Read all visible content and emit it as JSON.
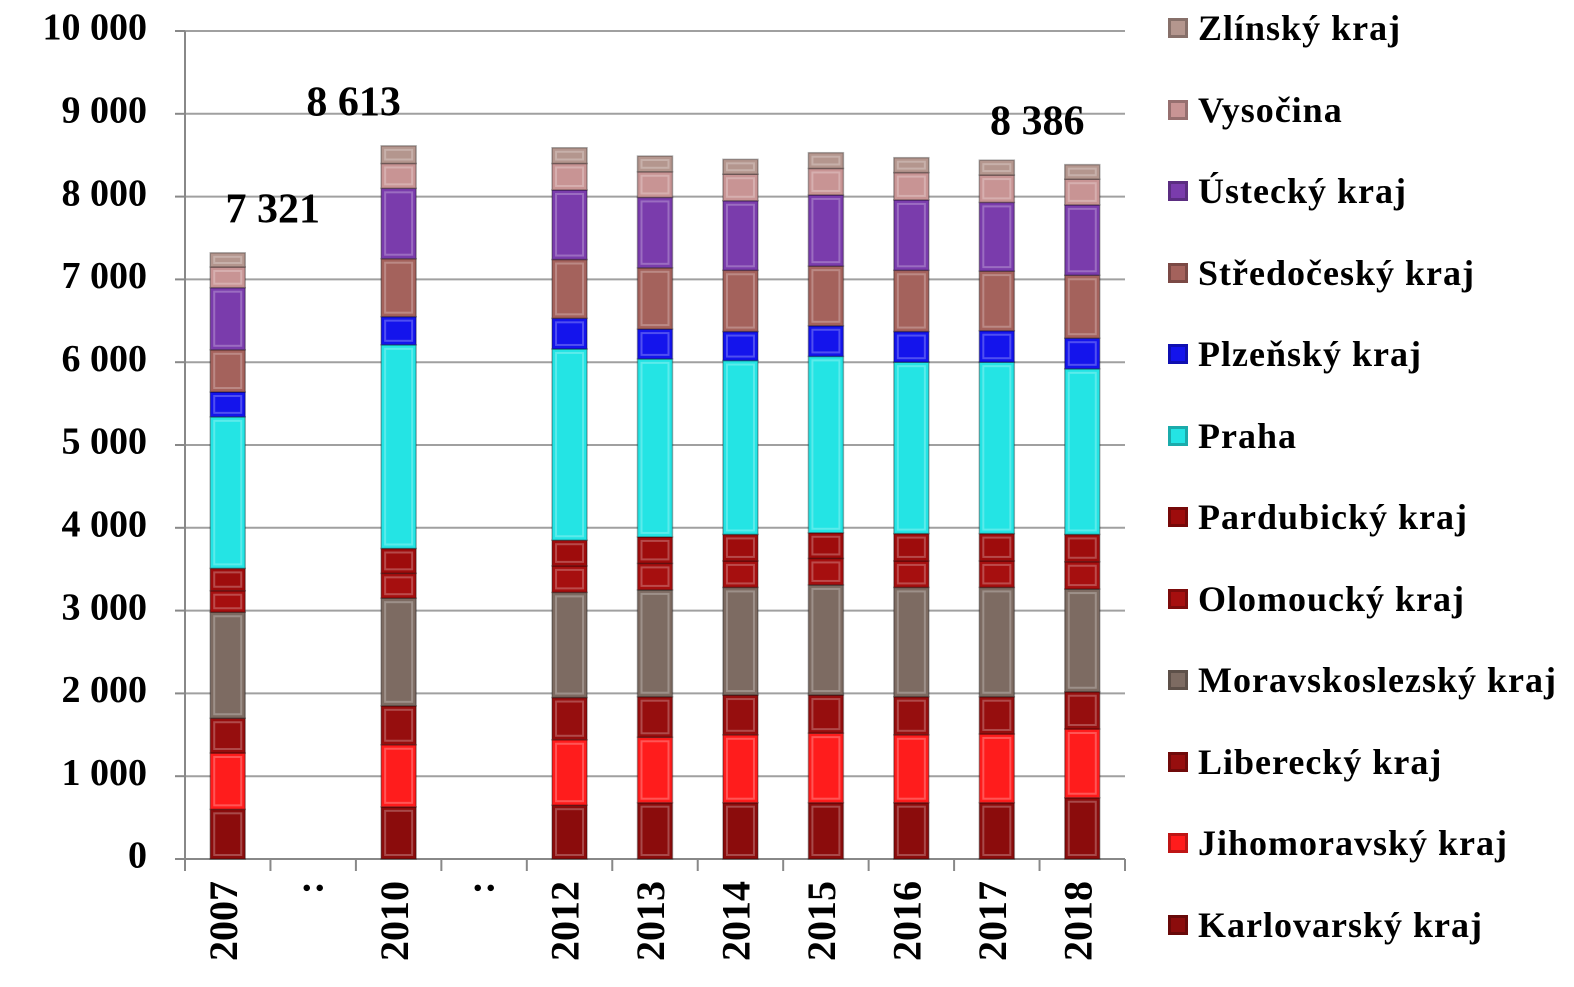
{
  "chart_data": {
    "type": "stacked-bar",
    "categories": [
      "2007",
      ":",
      "2010",
      ":",
      "2012",
      "2013",
      "2014",
      "2015",
      "2016",
      "2017",
      "2018"
    ],
    "series": [
      {
        "name": "Karlovarský kraj",
        "color": "#8b0c0c",
        "values": [
          600,
          null,
          630,
          null,
          650,
          680,
          680,
          680,
          680,
          680,
          740
        ]
      },
      {
        "name": "Jihomoravský kraj",
        "color": "#ff1c1c",
        "values": [
          680,
          null,
          750,
          null,
          790,
          790,
          820,
          840,
          820,
          830,
          830
        ]
      },
      {
        "name": "Liberecký kraj",
        "color": "#960e0e",
        "values": [
          420,
          null,
          470,
          null,
          510,
          490,
          480,
          460,
          460,
          450,
          450
        ]
      },
      {
        "name": "Moravskoslezský kraj",
        "color": "#7d6b62",
        "values": [
          1280,
          null,
          1300,
          null,
          1270,
          1290,
          1300,
          1330,
          1320,
          1320,
          1240
        ]
      },
      {
        "name": "Olomoucký kraj",
        "color": "#a60f0f",
        "values": [
          260,
          null,
          300,
          null,
          320,
          320,
          320,
          320,
          320,
          320,
          330
        ]
      },
      {
        "name": "Pardubický kraj",
        "color": "#9e0c0c",
        "values": [
          270,
          null,
          300,
          null,
          310,
          320,
          320,
          310,
          330,
          330,
          330
        ]
      },
      {
        "name": "Praha",
        "color": "#24e4e4",
        "values": [
          1830,
          null,
          2460,
          null,
          2310,
          2150,
          2100,
          2130,
          2070,
          2070,
          2000
        ]
      },
      {
        "name": "Plzeňský kraj",
        "color": "#1414ec",
        "values": [
          300,
          null,
          340,
          null,
          370,
          360,
          350,
          370,
          370,
          380,
          370
        ]
      },
      {
        "name": "Středočeský kraj",
        "color": "#a4625c",
        "values": [
          510,
          null,
          700,
          null,
          710,
          740,
          740,
          720,
          740,
          720,
          760
        ]
      },
      {
        "name": "Ústecký kraj",
        "color": "#7a3cac",
        "values": [
          750,
          null,
          850,
          null,
          840,
          850,
          840,
          860,
          850,
          830,
          850
        ]
      },
      {
        "name": "Vysočina",
        "color": "#c89494",
        "values": [
          250,
          null,
          300,
          null,
          320,
          310,
          320,
          320,
          330,
          330,
          310
        ]
      },
      {
        "name": "Zlínský kraj",
        "color": "#b4968e",
        "values": [
          171,
          null,
          213,
          null,
          190,
          190,
          180,
          190,
          180,
          180,
          176
        ]
      }
    ],
    "totals": [
      7321,
      null,
      8613,
      null,
      null,
      null,
      null,
      null,
      null,
      null,
      8386
    ],
    "total_labels": [
      "7 321",
      null,
      "8 613",
      null,
      null,
      null,
      null,
      null,
      null,
      null,
      "8 386"
    ],
    "ylim": [
      0,
      10000
    ],
    "yticks": [
      0,
      {
        "value": 1000,
        "label": "1 000"
      },
      {
        "value": 2000,
        "label": "2 000"
      },
      {
        "value": 3000,
        "label": "3 000"
      },
      {
        "value": 4000,
        "label": "4 000"
      },
      {
        "value": 5000,
        "label": "5 000"
      },
      {
        "value": 6000,
        "label": "6 000"
      },
      {
        "value": 7000,
        "label": "7 000"
      },
      {
        "value": 8000,
        "label": "8 000"
      },
      {
        "value": 9000,
        "label": "9 000"
      },
      {
        "value": 10000,
        "label": "10 000"
      }
    ],
    "grid": true,
    "legend": "right"
  }
}
